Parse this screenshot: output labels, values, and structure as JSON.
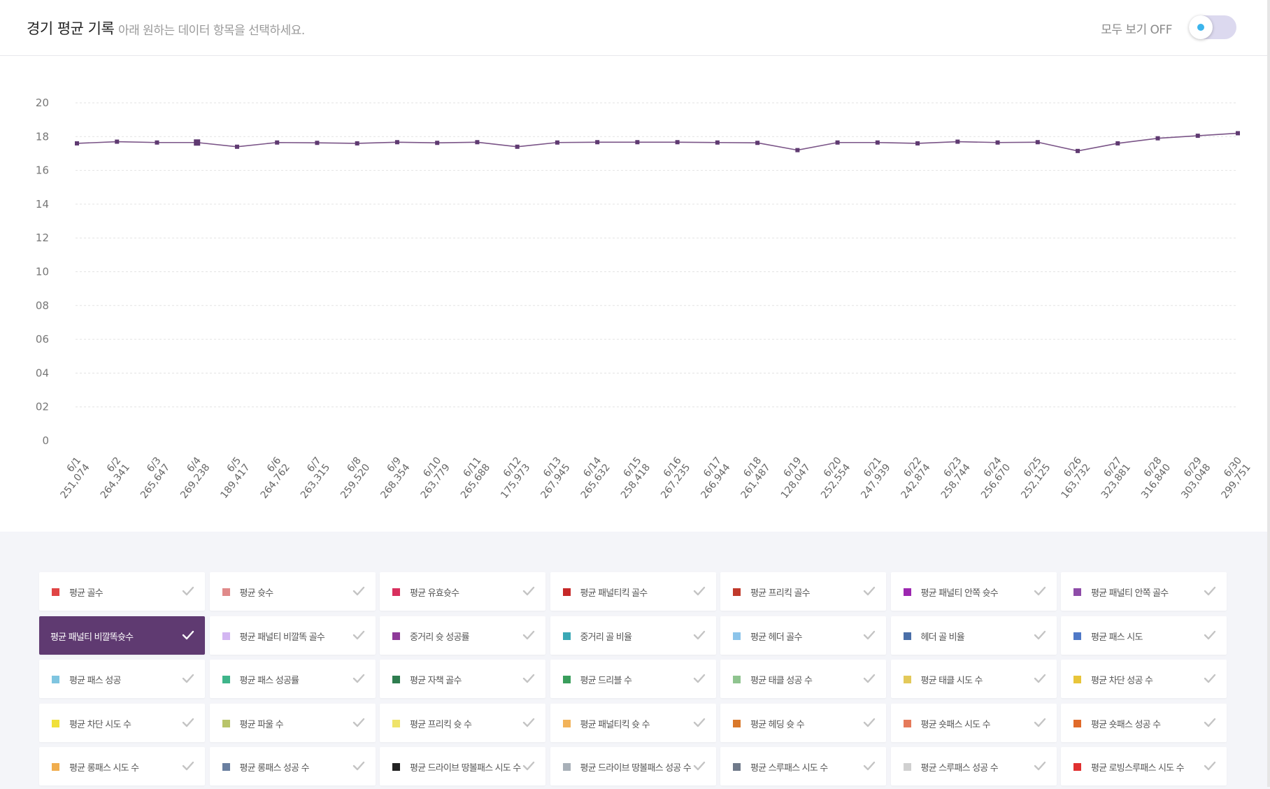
{
  "header": {
    "title": "경기 평균 기록",
    "subtitle": "아래 원하는 데이터 항목을 선택하세요.",
    "toggle_label": "모두 보기 OFF",
    "toggle_on": false
  },
  "chart_data": {
    "type": "line",
    "categories": [
      "6/1",
      "6/2",
      "6/3",
      "6/4",
      "6/5",
      "6/6",
      "6/7",
      "6/8",
      "6/9",
      "6/10",
      "6/11",
      "6/12",
      "6/13",
      "6/14",
      "6/15",
      "6/16",
      "6/17",
      "6/18",
      "6/19",
      "6/20",
      "6/21",
      "6/22",
      "6/23",
      "6/24",
      "6/25",
      "6/26",
      "6/27",
      "6/28",
      "6/29",
      "6/30"
    ],
    "sub_labels": [
      "251,074",
      "264,341",
      "265,647",
      "269,238",
      "189,417",
      "264,762",
      "263,315",
      "259,520",
      "268,354",
      "263,779",
      "265,688",
      "175,973",
      "267,945",
      "265,632",
      "258,418",
      "267,235",
      "266,944",
      "261,487",
      "128,047",
      "252,554",
      "247,939",
      "242,874",
      "258,744",
      "256,670",
      "252,125",
      "163,732",
      "323,881",
      "316,840",
      "303,048",
      "299,751"
    ],
    "series": [
      {
        "name": "평균 패널티 비깔똑슛수",
        "color": "#7a5487",
        "values": [
          1.76,
          1.77,
          1.765,
          1.765,
          1.74,
          1.765,
          1.763,
          1.76,
          1.767,
          1.763,
          1.767,
          1.74,
          1.765,
          1.767,
          1.767,
          1.767,
          1.765,
          1.763,
          1.72,
          1.765,
          1.765,
          1.76,
          1.77,
          1.765,
          1.767,
          1.715,
          1.76,
          1.79,
          1.805,
          1.82
        ]
      }
    ],
    "y_ticks": [
      "20",
      "18",
      "16",
      "14",
      "12",
      "10",
      "08",
      "06",
      "04",
      "02",
      "0"
    ],
    "ylim": [
      0,
      2.0
    ],
    "grid": true,
    "highlight_index": 3
  },
  "legend": [
    {
      "label": "평균 골수",
      "color": "#e04545",
      "active": false
    },
    {
      "label": "평균 슛수",
      "color": "#e08a8a",
      "active": false
    },
    {
      "label": "평균 유효슛수",
      "color": "#d8305e",
      "active": false
    },
    {
      "label": "평균 패널티킥 골수",
      "color": "#c62828",
      "active": false
    },
    {
      "label": "평균 프리킥 골수",
      "color": "#c0392b",
      "active": false
    },
    {
      "label": "평균 패널티 안쪽 슛수",
      "color": "#9c27b0",
      "active": false
    },
    {
      "label": "평균 패널티 안쪽 골수",
      "color": "#8e4ca8",
      "active": false
    },
    {
      "label": "평균 패널티 비깔똑슛수",
      "color": "#5f3a71",
      "active": true
    },
    {
      "label": "평균 패널티 비깔똑 골수",
      "color": "#d3b6f2",
      "active": false
    },
    {
      "label": "중거리 슛 성공률",
      "color": "#8e3a99",
      "active": false
    },
    {
      "label": "중거리 골 비율",
      "color": "#3aa8b5",
      "active": false
    },
    {
      "label": "평균 헤더 골수",
      "color": "#8cc4ea",
      "active": false
    },
    {
      "label": "헤더 골 비율",
      "color": "#4a6fa8",
      "active": false
    },
    {
      "label": "평균 패스 시도",
      "color": "#4f79c7",
      "active": false
    },
    {
      "label": "평균 패스 성공",
      "color": "#7fc5e0",
      "active": false
    },
    {
      "label": "평균 패스 성공률",
      "color": "#3fb58a",
      "active": false
    },
    {
      "label": "평균 자책 골수",
      "color": "#2e7d4f",
      "active": false
    },
    {
      "label": "평균 드리블 수",
      "color": "#3a9e5c",
      "active": false
    },
    {
      "label": "평균 태클 성공 수",
      "color": "#8fc48f",
      "active": false
    },
    {
      "label": "평균 태클 시도 수",
      "color": "#e3c95a",
      "active": false
    },
    {
      "label": "평균 차단 성공 수",
      "color": "#e8c53a",
      "active": false
    },
    {
      "label": "평균 차단 시도 수",
      "color": "#f0e03a",
      "active": false
    },
    {
      "label": "평균 파울 수",
      "color": "#b8c46a",
      "active": false
    },
    {
      "label": "평균 프리킥 슛 수",
      "color": "#efe36a",
      "active": false
    },
    {
      "label": "평균 패널티킥 슛 수",
      "color": "#f2b35a",
      "active": false
    },
    {
      "label": "평균 헤딩 슛 수",
      "color": "#d9782a",
      "active": false
    },
    {
      "label": "평균 숏패스 시도 수",
      "color": "#e57a5a",
      "active": false
    },
    {
      "label": "평균 숏패스 성공 수",
      "color": "#e06a2a",
      "active": false
    },
    {
      "label": "평균 롱패스 시도 수",
      "color": "#f0ad4e",
      "active": false
    },
    {
      "label": "평균 롱패스 성공 수",
      "color": "#6a7fa0",
      "active": false
    },
    {
      "label": "평균 드라이브 땅볼패스 시도 수",
      "color": "#222222",
      "active": false
    },
    {
      "label": "평균 드라이브 땅볼패스 성공 수",
      "color": "#a8b0b8",
      "active": false
    },
    {
      "label": "평균 스루패스 시도 수",
      "color": "#707a8a",
      "active": false
    },
    {
      "label": "평균 스루패스 성공 수",
      "color": "#d0d0d0",
      "active": false
    },
    {
      "label": "평균 로빙스루패스 시도 수",
      "color": "#e03030",
      "active": false
    }
  ]
}
